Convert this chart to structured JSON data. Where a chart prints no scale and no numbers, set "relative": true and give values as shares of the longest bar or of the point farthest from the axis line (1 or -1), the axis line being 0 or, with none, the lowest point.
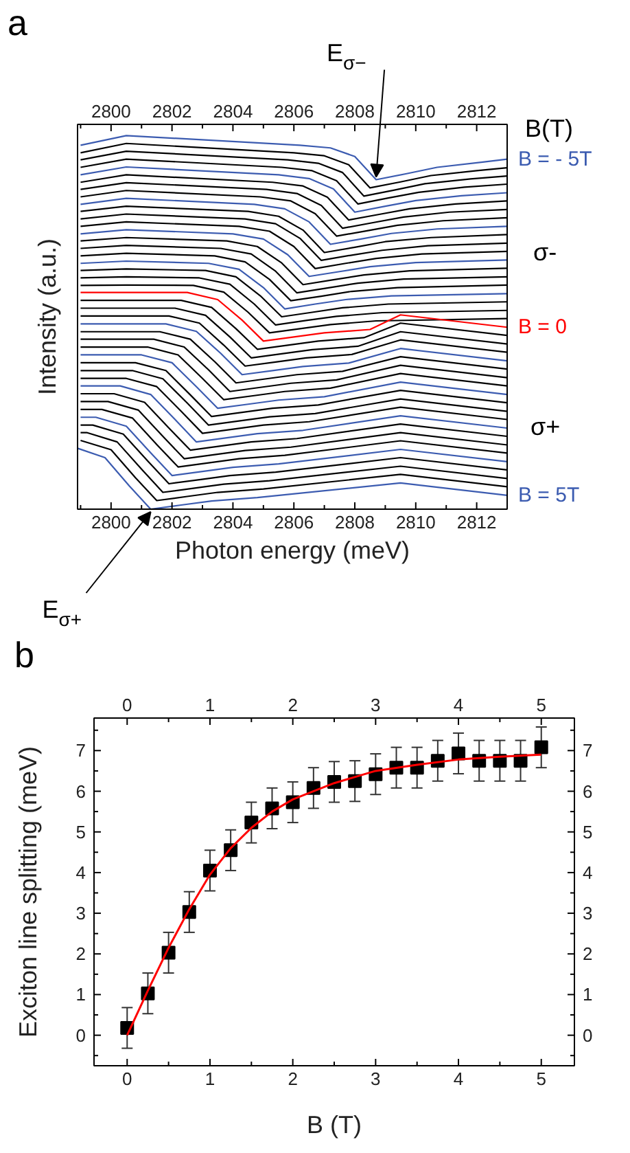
{
  "chart_data": [
    {
      "type": "line",
      "title": "a",
      "xlabel": "Photon energy (meV)",
      "ylabel": "Intensity (a.u.)",
      "relative": true,
      "xlim": [
        2798.9,
        2813.0
      ],
      "xticks": [
        2800,
        2802,
        2804,
        2806,
        2808,
        2810,
        2812
      ],
      "x2lim": [
        2798.9,
        2813.0
      ],
      "x2ticks": [
        2800,
        2802,
        2804,
        2806,
        2808,
        2810,
        2812
      ],
      "annotations": [
        {
          "text": "E$_{σ−}$",
          "x": 2808.7,
          "y": 0.882
        },
        {
          "text": "E$_{σ+}$",
          "x": 2801.3,
          "y": 0.0
        },
        "B(T)",
        "σ-",
        "σ+"
      ],
      "series": [
        {
          "name": "B = - 5T",
          "color": "#3b5bb0",
          "x": [
            2799,
            2800.5,
            2806.2,
            2807.2,
            2808.0,
            2808.7,
            2809.7,
            2810.7,
            2812.2,
            2813
          ],
          "values": [
            0.974,
            1.0,
            0.974,
            0.967,
            0.944,
            0.882,
            0.898,
            0.915,
            0.929,
            0.937
          ]
        },
        {
          "color": "#000000",
          "x": [
            2799,
            2800.5,
            2806.0,
            2807.0,
            2807.8,
            2808.5,
            2809.5,
            2810.5,
            2812.0,
            2813
          ],
          "values": [
            0.954,
            0.979,
            0.954,
            0.946,
            0.922,
            0.86,
            0.876,
            0.893,
            0.906,
            0.914
          ]
        },
        {
          "color": "#000000",
          "x": [
            2799,
            2800.5,
            2805.8,
            2806.8,
            2807.6,
            2808.3,
            2809.3,
            2810.3,
            2811.8,
            2813
          ],
          "values": [
            0.935,
            0.958,
            0.935,
            0.926,
            0.901,
            0.838,
            0.854,
            0.871,
            0.884,
            0.892
          ]
        },
        {
          "color": "#000000",
          "x": [
            2799,
            2800.5,
            2805.6,
            2806.6,
            2807.4,
            2808.1,
            2809.1,
            2810.1,
            2811.6,
            2813
          ],
          "values": [
            0.915,
            0.937,
            0.915,
            0.906,
            0.879,
            0.817,
            0.833,
            0.848,
            0.862,
            0.87
          ]
        },
        {
          "color": "#3b5bb0",
          "x": [
            2799,
            2800.5,
            2805.5,
            2806.5,
            2807.3,
            2808.0,
            2809.0,
            2810.0,
            2811.5,
            2813
          ],
          "values": [
            0.895,
            0.916,
            0.895,
            0.885,
            0.857,
            0.795,
            0.811,
            0.826,
            0.839,
            0.847
          ]
        },
        {
          "color": "#000000",
          "x": [
            2799,
            2800.5,
            2805.3,
            2806.3,
            2807.1,
            2807.8,
            2808.8,
            2809.8,
            2811.3,
            2813
          ],
          "values": [
            0.875,
            0.895,
            0.875,
            0.865,
            0.835,
            0.774,
            0.789,
            0.804,
            0.817,
            0.825
          ]
        },
        {
          "color": "#000000",
          "x": [
            2799,
            2800.5,
            2805.1,
            2806.1,
            2806.9,
            2807.6,
            2808.6,
            2809.6,
            2811.1,
            2813
          ],
          "values": [
            0.856,
            0.874,
            0.856,
            0.845,
            0.813,
            0.752,
            0.767,
            0.782,
            0.795,
            0.802
          ]
        },
        {
          "color": "#000000",
          "x": [
            2799,
            2800.5,
            2804.9,
            2805.9,
            2806.7,
            2807.4,
            2808.4,
            2809.4,
            2810.9,
            2813
          ],
          "values": [
            0.836,
            0.853,
            0.836,
            0.825,
            0.791,
            0.731,
            0.745,
            0.76,
            0.772,
            0.78
          ]
        },
        {
          "color": "#3b5bb0",
          "x": [
            2799,
            2800.5,
            2804.7,
            2805.7,
            2806.5,
            2807.2,
            2808.2,
            2809.2,
            2810.7,
            2813
          ],
          "values": [
            0.816,
            0.832,
            0.816,
            0.804,
            0.769,
            0.709,
            0.723,
            0.738,
            0.75,
            0.757
          ]
        },
        {
          "color": "#000000",
          "x": [
            2799,
            2800.5,
            2804.5,
            2805.5,
            2806.3,
            2807.0,
            2808.0,
            2809.0,
            2810.5,
            2813
          ],
          "values": [
            0.797,
            0.811,
            0.797,
            0.784,
            0.747,
            0.687,
            0.701,
            0.716,
            0.727,
            0.735
          ]
        },
        {
          "color": "#000000",
          "x": [
            2799,
            2800.5,
            2804.4,
            2805.4,
            2806.2,
            2806.9,
            2807.9,
            2808.9,
            2810.4,
            2813
          ],
          "values": [
            0.777,
            0.79,
            0.777,
            0.764,
            0.725,
            0.666,
            0.68,
            0.693,
            0.705,
            0.712
          ]
        },
        {
          "color": "#000000",
          "x": [
            2799,
            2800.5,
            2804.2,
            2805.2,
            2806.0,
            2806.7,
            2807.7,
            2808.7,
            2810.2,
            2813
          ],
          "values": [
            0.757,
            0.769,
            0.757,
            0.744,
            0.703,
            0.644,
            0.658,
            0.671,
            0.683,
            0.69
          ]
        },
        {
          "color": "#3b5bb0",
          "x": [
            2799,
            2800.5,
            2804.0,
            2805.0,
            2805.8,
            2806.5,
            2807.5,
            2808.5,
            2810.0,
            2813
          ],
          "values": [
            0.737,
            0.748,
            0.737,
            0.723,
            0.681,
            0.623,
            0.636,
            0.649,
            0.66,
            0.667
          ]
        },
        {
          "color": "#000000",
          "x": [
            2799,
            2800.5,
            2803.8,
            2804.8,
            2805.6,
            2806.3,
            2807.3,
            2808.3,
            2809.8,
            2813
          ],
          "values": [
            0.718,
            0.727,
            0.718,
            0.703,
            0.659,
            0.601,
            0.614,
            0.627,
            0.638,
            0.645
          ]
        },
        {
          "color": "#000000",
          "x": [
            2799,
            2800.5,
            2803.6,
            2804.6,
            2805.4,
            2806.1,
            2807.1,
            2808.1,
            2809.6,
            2813
          ],
          "values": [
            0.698,
            0.706,
            0.698,
            0.683,
            0.637,
            0.579,
            0.592,
            0.605,
            0.616,
            0.622
          ]
        },
        {
          "color": "#000000",
          "x": [
            2799,
            2800.5,
            2803.4,
            2804.4,
            2805.2,
            2805.9,
            2806.9,
            2807.9,
            2809.4,
            2813
          ],
          "values": [
            0.678,
            0.685,
            0.678,
            0.662,
            0.615,
            0.558,
            0.57,
            0.583,
            0.593,
            0.6
          ]
        },
        {
          "color": "#3b5bb0",
          "x": [
            2799,
            2800.5,
            2803.2,
            2804.2,
            2805.0,
            2805.7,
            2806.7,
            2807.7,
            2809.2,
            2813
          ],
          "values": [
            0.658,
            0.664,
            0.658,
            0.642,
            0.593,
            0.536,
            0.549,
            0.561,
            0.571,
            0.577
          ]
        },
        {
          "color": "#000000",
          "x": [
            2799,
            2800.5,
            2803.1,
            2804.1,
            2804.9,
            2805.6,
            2806.6,
            2807.6,
            2809.1,
            2813
          ],
          "values": [
            0.639,
            0.643,
            0.639,
            0.622,
            0.571,
            0.515,
            0.527,
            0.539,
            0.549,
            0.555
          ]
        },
        {
          "color": "#000000",
          "x": [
            2799,
            2800.5,
            2802.9,
            2803.9,
            2804.7,
            2805.4,
            2806.4,
            2807.4,
            2808.9,
            2813
          ],
          "values": [
            0.619,
            0.622,
            0.619,
            0.602,
            0.549,
            0.493,
            0.505,
            0.516,
            0.526,
            0.532
          ]
        },
        {
          "color": "#000000",
          "x": [
            2799,
            2800.5,
            2802.7,
            2803.7,
            2804.5,
            2805.2,
            2806.2,
            2807.2,
            2808.7,
            2813
          ],
          "values": [
            0.599,
            0.6,
            0.599,
            0.581,
            0.527,
            0.472,
            0.483,
            0.494,
            0.504,
            0.51
          ]
        },
        {
          "name": "B = 0",
          "color": "#ff0000",
          "x": [
            2799,
            2802.5,
            2803.5,
            2804.3,
            2805.0,
            2806.0,
            2807.0,
            2808.5,
            2809.5,
            2813
          ],
          "values": [
            0.58,
            0.58,
            0.561,
            0.506,
            0.45,
            0.461,
            0.472,
            0.481,
            0.52,
            0.487
          ]
        },
        {
          "color": "#000000",
          "x": [
            2799,
            2802.3,
            2803.3,
            2804.1,
            2804.8,
            2805.8,
            2806.8,
            2808.3,
            2809.5,
            2813
          ],
          "values": [
            0.559,
            0.559,
            0.54,
            0.483,
            0.428,
            0.439,
            0.45,
            0.459,
            0.498,
            0.465
          ]
        },
        {
          "color": "#000000",
          "x": [
            2799,
            2802.1,
            2803.1,
            2803.9,
            2804.6,
            2805.6,
            2806.6,
            2808.1,
            2809.5,
            2813
          ],
          "values": [
            0.538,
            0.538,
            0.519,
            0.461,
            0.405,
            0.416,
            0.427,
            0.436,
            0.475,
            0.442
          ]
        },
        {
          "color": "#000000",
          "x": [
            2799,
            2801.9,
            2802.9,
            2803.7,
            2804.4,
            2805.4,
            2806.4,
            2807.9,
            2809.5,
            2813
          ],
          "values": [
            0.517,
            0.517,
            0.498,
            0.439,
            0.383,
            0.394,
            0.405,
            0.414,
            0.453,
            0.42
          ]
        },
        {
          "color": "#3b5bb0",
          "x": [
            2799,
            2801.8,
            2802.8,
            2803.6,
            2804.3,
            2805.3,
            2806.3,
            2807.8,
            2809.5,
            2813
          ],
          "values": [
            0.496,
            0.496,
            0.476,
            0.417,
            0.36,
            0.371,
            0.382,
            0.391,
            0.43,
            0.397
          ]
        },
        {
          "color": "#000000",
          "x": [
            2799,
            2801.6,
            2802.6,
            2803.4,
            2804.1,
            2805.1,
            2806.1,
            2807.6,
            2809.5,
            2813
          ],
          "values": [
            0.475,
            0.475,
            0.455,
            0.395,
            0.338,
            0.349,
            0.36,
            0.369,
            0.408,
            0.375
          ]
        },
        {
          "color": "#000000",
          "x": [
            2799,
            2801.4,
            2802.4,
            2803.2,
            2803.9,
            2804.9,
            2805.9,
            2807.4,
            2809.5,
            2813
          ],
          "values": [
            0.455,
            0.455,
            0.434,
            0.373,
            0.315,
            0.326,
            0.337,
            0.346,
            0.385,
            0.352
          ]
        },
        {
          "color": "#000000",
          "x": [
            2799,
            2801.2,
            2802.2,
            2803.0,
            2803.7,
            2804.7,
            2805.7,
            2807.2,
            2809.5,
            2813
          ],
          "values": [
            0.434,
            0.434,
            0.413,
            0.35,
            0.293,
            0.304,
            0.315,
            0.324,
            0.363,
            0.33
          ]
        },
        {
          "color": "#3b5bb0",
          "x": [
            2799,
            2801.0,
            2802.0,
            2802.8,
            2803.5,
            2804.5,
            2805.5,
            2807.0,
            2809.5,
            2813
          ],
          "values": [
            0.413,
            0.413,
            0.392,
            0.328,
            0.27,
            0.281,
            0.292,
            0.301,
            0.34,
            0.307
          ]
        },
        {
          "color": "#000000",
          "x": [
            2799,
            2800.8,
            2801.8,
            2802.6,
            2803.3,
            2804.3,
            2805.3,
            2806.8,
            2809.5,
            2813
          ],
          "values": [
            0.392,
            0.392,
            0.371,
            0.306,
            0.248,
            0.259,
            0.27,
            0.279,
            0.318,
            0.285
          ]
        },
        {
          "color": "#000000",
          "x": [
            2799,
            2800.7,
            2801.7,
            2802.5,
            2803.2,
            2804.2,
            2805.2,
            2806.7,
            2809.5,
            2813
          ],
          "values": [
            0.371,
            0.371,
            0.349,
            0.284,
            0.225,
            0.236,
            0.247,
            0.256,
            0.295,
            0.262
          ]
        },
        {
          "color": "#000000",
          "x": [
            2799,
            2800.5,
            2801.5,
            2802.3,
            2803.0,
            2804.0,
            2805.0,
            2806.5,
            2809.5,
            2813
          ],
          "values": [
            0.35,
            0.35,
            0.328,
            0.262,
            0.203,
            0.214,
            0.225,
            0.234,
            0.273,
            0.24
          ]
        },
        {
          "color": "#3b5bb0",
          "x": [
            2799,
            2800.3,
            2801.3,
            2802.1,
            2802.8,
            2803.8,
            2804.8,
            2806.3,
            2809.5,
            2813
          ],
          "values": [
            0.33,
            0.33,
            0.307,
            0.24,
            0.18,
            0.191,
            0.202,
            0.211,
            0.25,
            0.217
          ]
        },
        {
          "color": "#000000",
          "x": [
            2799,
            2800.1,
            2801.1,
            2801.9,
            2802.6,
            2803.6,
            2804.6,
            2806.1,
            2809.5,
            2813
          ],
          "values": [
            0.309,
            0.309,
            0.286,
            0.217,
            0.158,
            0.169,
            0.18,
            0.189,
            0.228,
            0.195
          ]
        },
        {
          "color": "#000000",
          "x": [
            2799,
            2799.9,
            2800.9,
            2801.7,
            2802.4,
            2803.4,
            2804.4,
            2805.9,
            2809.5,
            2813
          ],
          "values": [
            0.288,
            0.288,
            0.265,
            0.195,
            0.135,
            0.146,
            0.157,
            0.166,
            0.205,
            0.172
          ]
        },
        {
          "color": "#000000",
          "x": [
            2799,
            2799.7,
            2800.7,
            2801.5,
            2802.2,
            2803.2,
            2804.2,
            2805.7,
            2809.5,
            2813
          ],
          "values": [
            0.267,
            0.267,
            0.244,
            0.173,
            0.113,
            0.124,
            0.135,
            0.144,
            0.183,
            0.15
          ]
        },
        {
          "color": "#3b5bb0",
          "x": [
            2799,
            2799.5,
            2800.5,
            2801.3,
            2802.0,
            2803.0,
            2804.0,
            2805.5,
            2809.5,
            2813
          ],
          "values": [
            0.246,
            0.246,
            0.222,
            0.151,
            0.09,
            0.101,
            0.112,
            0.121,
            0.16,
            0.127
          ]
        },
        {
          "color": "#000000",
          "x": [
            2799,
            2799.4,
            2800.4,
            2801.2,
            2801.9,
            2802.9,
            2803.9,
            2805.4,
            2809.5,
            2813
          ],
          "values": [
            0.225,
            0.225,
            0.201,
            0.129,
            0.068,
            0.079,
            0.09,
            0.099,
            0.138,
            0.105
          ]
        },
        {
          "color": "#000000",
          "x": [
            2799,
            2799.2,
            2800.2,
            2801.0,
            2801.7,
            2802.7,
            2803.7,
            2805.2,
            2809.5,
            2813
          ],
          "values": [
            0.205,
            0.205,
            0.18,
            0.107,
            0.045,
            0.056,
            0.067,
            0.076,
            0.115,
            0.082
          ]
        },
        {
          "color": "#000000",
          "x": [
            2799.0,
            2800.0,
            2800.8,
            2801.5,
            2802.5,
            2803.5,
            2805.0,
            2809.5,
            2813
          ],
          "values": [
            0.184,
            0.159,
            0.084,
            0.023,
            0.034,
            0.045,
            0.054,
            0.093,
            0.06
          ]
        },
        {
          "name": "B = 5T",
          "color": "#3b5bb0",
          "x": [
            2798.9,
            2799.8,
            2800.6,
            2801.3,
            2802.3,
            2803.3,
            2804.8,
            2809.5,
            2813
          ],
          "values": [
            0.163,
            0.138,
            0.062,
            0.0,
            0.011,
            0.022,
            0.031,
            0.07,
            0.037
          ]
        }
      ]
    },
    {
      "type": "scatter",
      "title": "b",
      "xlabel": "B (T)",
      "ylabel": "Exciton line splitting (meV)",
      "xlim": [
        -0.4,
        5.4
      ],
      "ylim": [
        -0.75,
        7.8
      ],
      "xticks": [
        0,
        1,
        2,
        3,
        4,
        5
      ],
      "yticks": [
        0,
        1,
        2,
        3,
        4,
        5,
        6,
        7
      ],
      "x2lim": [
        -0.4,
        5.4
      ],
      "x2ticks": [
        0,
        1,
        2,
        3,
        4,
        5
      ],
      "y2lim": [
        -0.75,
        7.8
      ],
      "y2ticks": [
        0,
        1,
        2,
        3,
        4,
        5,
        6,
        7
      ],
      "series": [
        {
          "type": "scatter",
          "marker": "square",
          "color": "#000000",
          "x": [
            0,
            0.25,
            0.5,
            0.75,
            1,
            1.25,
            1.5,
            1.75,
            2,
            2.25,
            2.5,
            2.75,
            3,
            3.25,
            3.5,
            3.75,
            4,
            4.25,
            4.5,
            4.75,
            5
          ],
          "values": [
            0.18,
            1.03,
            2.03,
            3.03,
            4.05,
            4.55,
            5.23,
            5.58,
            5.73,
            6.08,
            6.23,
            6.25,
            6.42,
            6.58,
            6.58,
            6.75,
            6.93,
            6.75,
            6.75,
            6.75,
            7.08
          ],
          "errors": [
            0.5,
            0.5,
            0.5,
            0.5,
            0.5,
            0.5,
            0.5,
            0.5,
            0.5,
            0.5,
            0.5,
            0.5,
            0.5,
            0.5,
            0.5,
            0.5,
            0.5,
            0.5,
            0.5,
            0.5,
            0.5
          ]
        },
        {
          "type": "line",
          "color": "#ff0000",
          "x": [
            0,
            0.25,
            0.5,
            0.75,
            1,
            1.25,
            1.5,
            1.75,
            2,
            2.5,
            3,
            3.5,
            4,
            4.5,
            5
          ],
          "values": [
            0.0,
            1.1,
            2.15,
            3.1,
            3.95,
            4.6,
            5.1,
            5.5,
            5.8,
            6.2,
            6.5,
            6.65,
            6.78,
            6.85,
            6.9
          ]
        }
      ]
    }
  ]
}
